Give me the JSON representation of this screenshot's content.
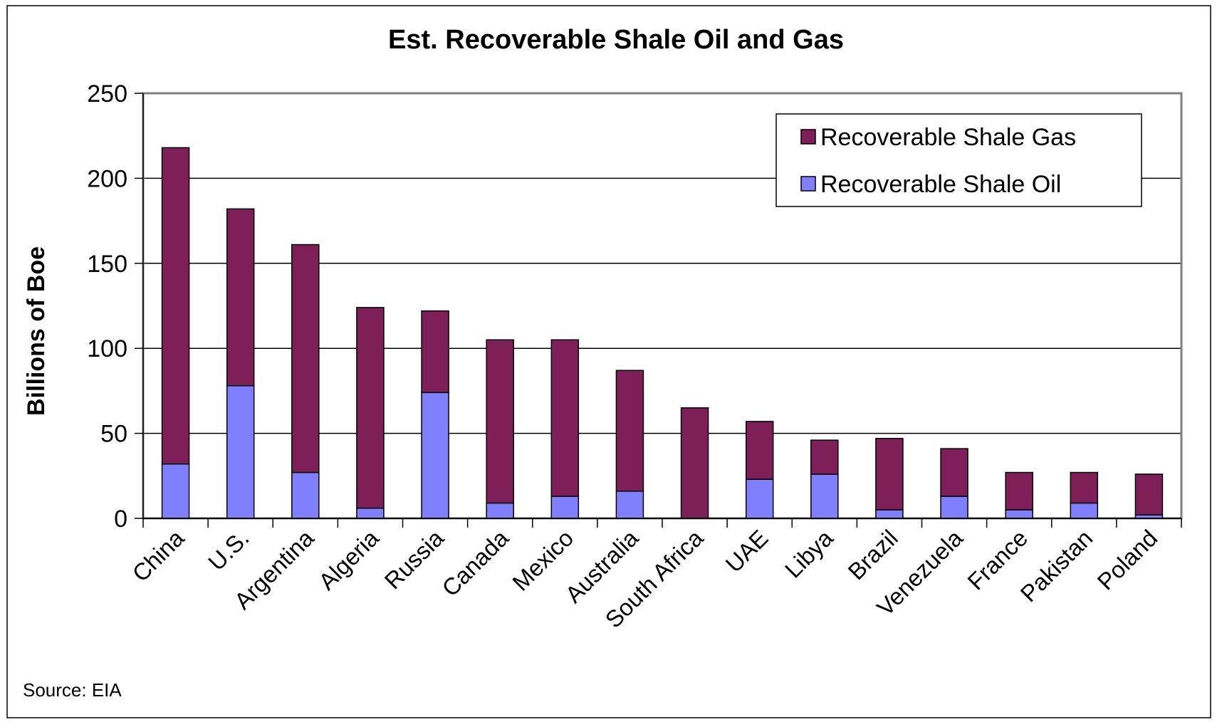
{
  "chart_data": {
    "type": "bar",
    "stacked": true,
    "title": "Est. Recoverable Shale Oil and Gas",
    "ylabel": "Billions of Boe",
    "xlabel": "",
    "ylim": [
      0,
      250
    ],
    "yticks": [
      0,
      50,
      100,
      150,
      200,
      250
    ],
    "grid": true,
    "legend_position": "top-right",
    "categories": [
      "China",
      "U.S.",
      "Argentina",
      "Algeria",
      "Russia",
      "Canada",
      "Mexico",
      "Australia",
      "South Africa",
      "UAE",
      "Libya",
      "Brazil",
      "Venezuela",
      "France",
      "Pakistan",
      "Poland"
    ],
    "series": [
      {
        "name": "Recoverable Shale Oil",
        "color": "#8080ff",
        "values": [
          32,
          78,
          27,
          6,
          74,
          9,
          13,
          16,
          0,
          23,
          26,
          5,
          13,
          5,
          9,
          2
        ]
      },
      {
        "name": "Recoverable Shale Gas",
        "color": "#7f1f5a",
        "values": [
          186,
          104,
          134,
          118,
          48,
          96,
          92,
          71,
          65,
          34,
          20,
          42,
          28,
          22,
          18,
          24
        ]
      }
    ],
    "legend_order": [
      "Recoverable Shale Gas",
      "Recoverable Shale Oil"
    ],
    "source_note": "Source: EIA"
  }
}
